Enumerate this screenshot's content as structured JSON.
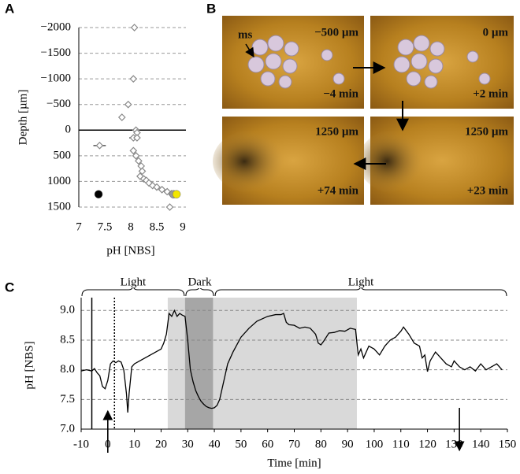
{
  "chart_data": [
    {
      "type": "scatter",
      "panel": "A",
      "ylabel": "Depth [µm]",
      "xlabel": "pH [NBS]",
      "xlim": [
        7,
        9
      ],
      "xticks": [
        7,
        7.5,
        8,
        8.5,
        9
      ],
      "ylim": [
        -2000,
        1500
      ],
      "y_reversed": true,
      "yticks": [
        {
          "value": -2000,
          "label": "−2000"
        },
        {
          "value": -1500,
          "label": "−1500"
        },
        {
          "value": -1000,
          "label": "−1000"
        },
        {
          "value": -500,
          "label": "−500"
        },
        0,
        500,
        1000,
        1500
      ],
      "grid": true,
      "color": "#888888",
      "points": [
        {
          "x": 8.07,
          "y": -2000,
          "xerr": 0.03
        },
        {
          "x": 8.05,
          "y": -1000,
          "xerr": 0.03
        },
        {
          "x": 7.95,
          "y": -500,
          "xerr": 0.04
        },
        {
          "x": 7.83,
          "y": -250,
          "xerr": 0.03
        },
        {
          "x": 8.1,
          "y": 0,
          "xerr": 0.03
        },
        {
          "x": 8.12,
          "y": 50,
          "xerr": 0.02
        },
        {
          "x": 8.05,
          "y": 150,
          "xerr": 0.08
        },
        {
          "x": 7.4,
          "y": 300,
          "xerr": 0.12
        },
        {
          "x": 8.12,
          "y": 150,
          "xerr": 0.02
        },
        {
          "x": 8.05,
          "y": 400,
          "xerr": 0.02
        },
        {
          "x": 8.1,
          "y": 500,
          "xerr": 0.02
        },
        {
          "x": 8.15,
          "y": 600,
          "xerr": 0.03
        },
        {
          "x": 8.2,
          "y": 700,
          "xerr": 0.03
        },
        {
          "x": 8.22,
          "y": 800,
          "xerr": 0.03
        },
        {
          "x": 8.18,
          "y": 900,
          "xerr": 0.02
        },
        {
          "x": 8.25,
          "y": 950,
          "xerr": 0.03
        },
        {
          "x": 8.3,
          "y": 980,
          "xerr": 0.03
        },
        {
          "x": 8.35,
          "y": 1030,
          "xerr": 0.03
        },
        {
          "x": 8.42,
          "y": 1080,
          "xerr": 0.03
        },
        {
          "x": 8.5,
          "y": 1110,
          "xerr": 0.03
        },
        {
          "x": 8.6,
          "y": 1160,
          "xerr": 0.03
        },
        {
          "x": 8.7,
          "y": 1200,
          "xerr": 0.03
        },
        {
          "x": 8.78,
          "y": 1240,
          "xerr": 0.03
        },
        {
          "x": 8.75,
          "y": 1500,
          "xerr": 0.02
        }
      ],
      "extra_points": [
        {
          "x": 7.38,
          "y": 1250,
          "color": "#000000"
        },
        {
          "x": 8.82,
          "y": 1250,
          "color": "#999999"
        },
        {
          "x": 8.88,
          "y": 1250,
          "color": "#f2e600"
        }
      ]
    },
    {
      "type": "line",
      "panel": "C",
      "ylabel": "pH [NBS]",
      "xlabel": "Time [min]",
      "color": "#000000",
      "xlim": [
        -10,
        150
      ],
      "xticks": [
        -10,
        0,
        10,
        20,
        30,
        40,
        50,
        60,
        70,
        80,
        90,
        100,
        110,
        120,
        130,
        140,
        150
      ],
      "ylim": [
        7.0,
        9.15
      ],
      "yticks": [
        {
          "value": 7.0,
          "label": "7.0"
        },
        7.5,
        {
          "value": 8.0,
          "label": "8.0"
        },
        8.5,
        {
          "value": 9.0,
          "label": "9.0"
        }
      ],
      "grid": true,
      "shaded_regions": [
        {
          "from": 22.5,
          "to": 93.5,
          "color": "#d9d9d9"
        },
        {
          "from": 29,
          "to": 39.5,
          "color": "#a6a6a6"
        }
      ],
      "periods": [
        {
          "label": "Light",
          "from": -10,
          "to": 29
        },
        {
          "label": "Dark",
          "from": 29,
          "to": 40
        },
        {
          "label": "Light",
          "from": 40,
          "to": 150
        }
      ],
      "vlines": [
        {
          "x": -6,
          "style": "solid"
        },
        {
          "x": 2.5,
          "style": "dotted"
        }
      ],
      "arrows": [
        {
          "x": 0,
          "direction": "up"
        },
        {
          "x": 132,
          "direction": "down"
        }
      ],
      "x": [
        -10,
        -8,
        -6,
        -5,
        -4,
        -3,
        -2,
        -1,
        0,
        1,
        2,
        3,
        4,
        5,
        6,
        7,
        7.5,
        8,
        9,
        10,
        12,
        14,
        16,
        18,
        20,
        21,
        22,
        23,
        24,
        25,
        26,
        27,
        28,
        29,
        30,
        31,
        32,
        33,
        34,
        35,
        36,
        37,
        38,
        39,
        40,
        41,
        42,
        43,
        44,
        45,
        47,
        50,
        53,
        56,
        60,
        63,
        65,
        66,
        67,
        68,
        70,
        72,
        74,
        76,
        78,
        79,
        80,
        81,
        83,
        85,
        87,
        89,
        91,
        93,
        94,
        95,
        96,
        97,
        98,
        100,
        102,
        104,
        106,
        108,
        110,
        111,
        113,
        115,
        117,
        118,
        119,
        120,
        121,
        123,
        125,
        127,
        129,
        130,
        132,
        134,
        136,
        138,
        140,
        142,
        144,
        146,
        148
      ],
      "values": [
        7.98,
        8.0,
        7.98,
        8.02,
        7.95,
        7.9,
        7.72,
        7.68,
        7.82,
        8.1,
        8.15,
        8.12,
        8.15,
        8.13,
        8.0,
        7.6,
        7.28,
        7.6,
        8.05,
        8.1,
        8.15,
        8.2,
        8.25,
        8.3,
        8.35,
        8.45,
        8.6,
        8.95,
        8.9,
        9.0,
        8.9,
        8.95,
        8.92,
        8.9,
        8.5,
        8.0,
        7.8,
        7.65,
        7.55,
        7.47,
        7.42,
        7.38,
        7.36,
        7.35,
        7.36,
        7.4,
        7.5,
        7.7,
        7.9,
        8.1,
        8.3,
        8.55,
        8.7,
        8.82,
        8.9,
        8.93,
        8.93,
        8.95,
        8.8,
        8.76,
        8.75,
        8.7,
        8.72,
        8.7,
        8.6,
        8.45,
        8.42,
        8.48,
        8.62,
        8.63,
        8.66,
        8.65,
        8.7,
        8.68,
        8.25,
        8.35,
        8.2,
        8.3,
        8.4,
        8.35,
        8.25,
        8.4,
        8.5,
        8.55,
        8.65,
        8.72,
        8.6,
        8.45,
        8.4,
        8.2,
        8.25,
        7.97,
        8.15,
        8.3,
        8.2,
        8.1,
        8.05,
        8.15,
        8.05,
        8.0,
        8.05,
        7.98,
        8.1,
        8.0,
        8.05,
        8.1,
        8.0
      ]
    }
  ],
  "images": {
    "panel": "B",
    "frames": [
      {
        "depth": "−500 µm",
        "time": "−4 min",
        "annotation": "ms"
      },
      {
        "depth": "0 µm",
        "time": "+2 min"
      },
      {
        "depth": "1250 µm",
        "time": "+74 min"
      },
      {
        "depth": "1250 µm",
        "time": "+23 min"
      }
    ]
  }
}
